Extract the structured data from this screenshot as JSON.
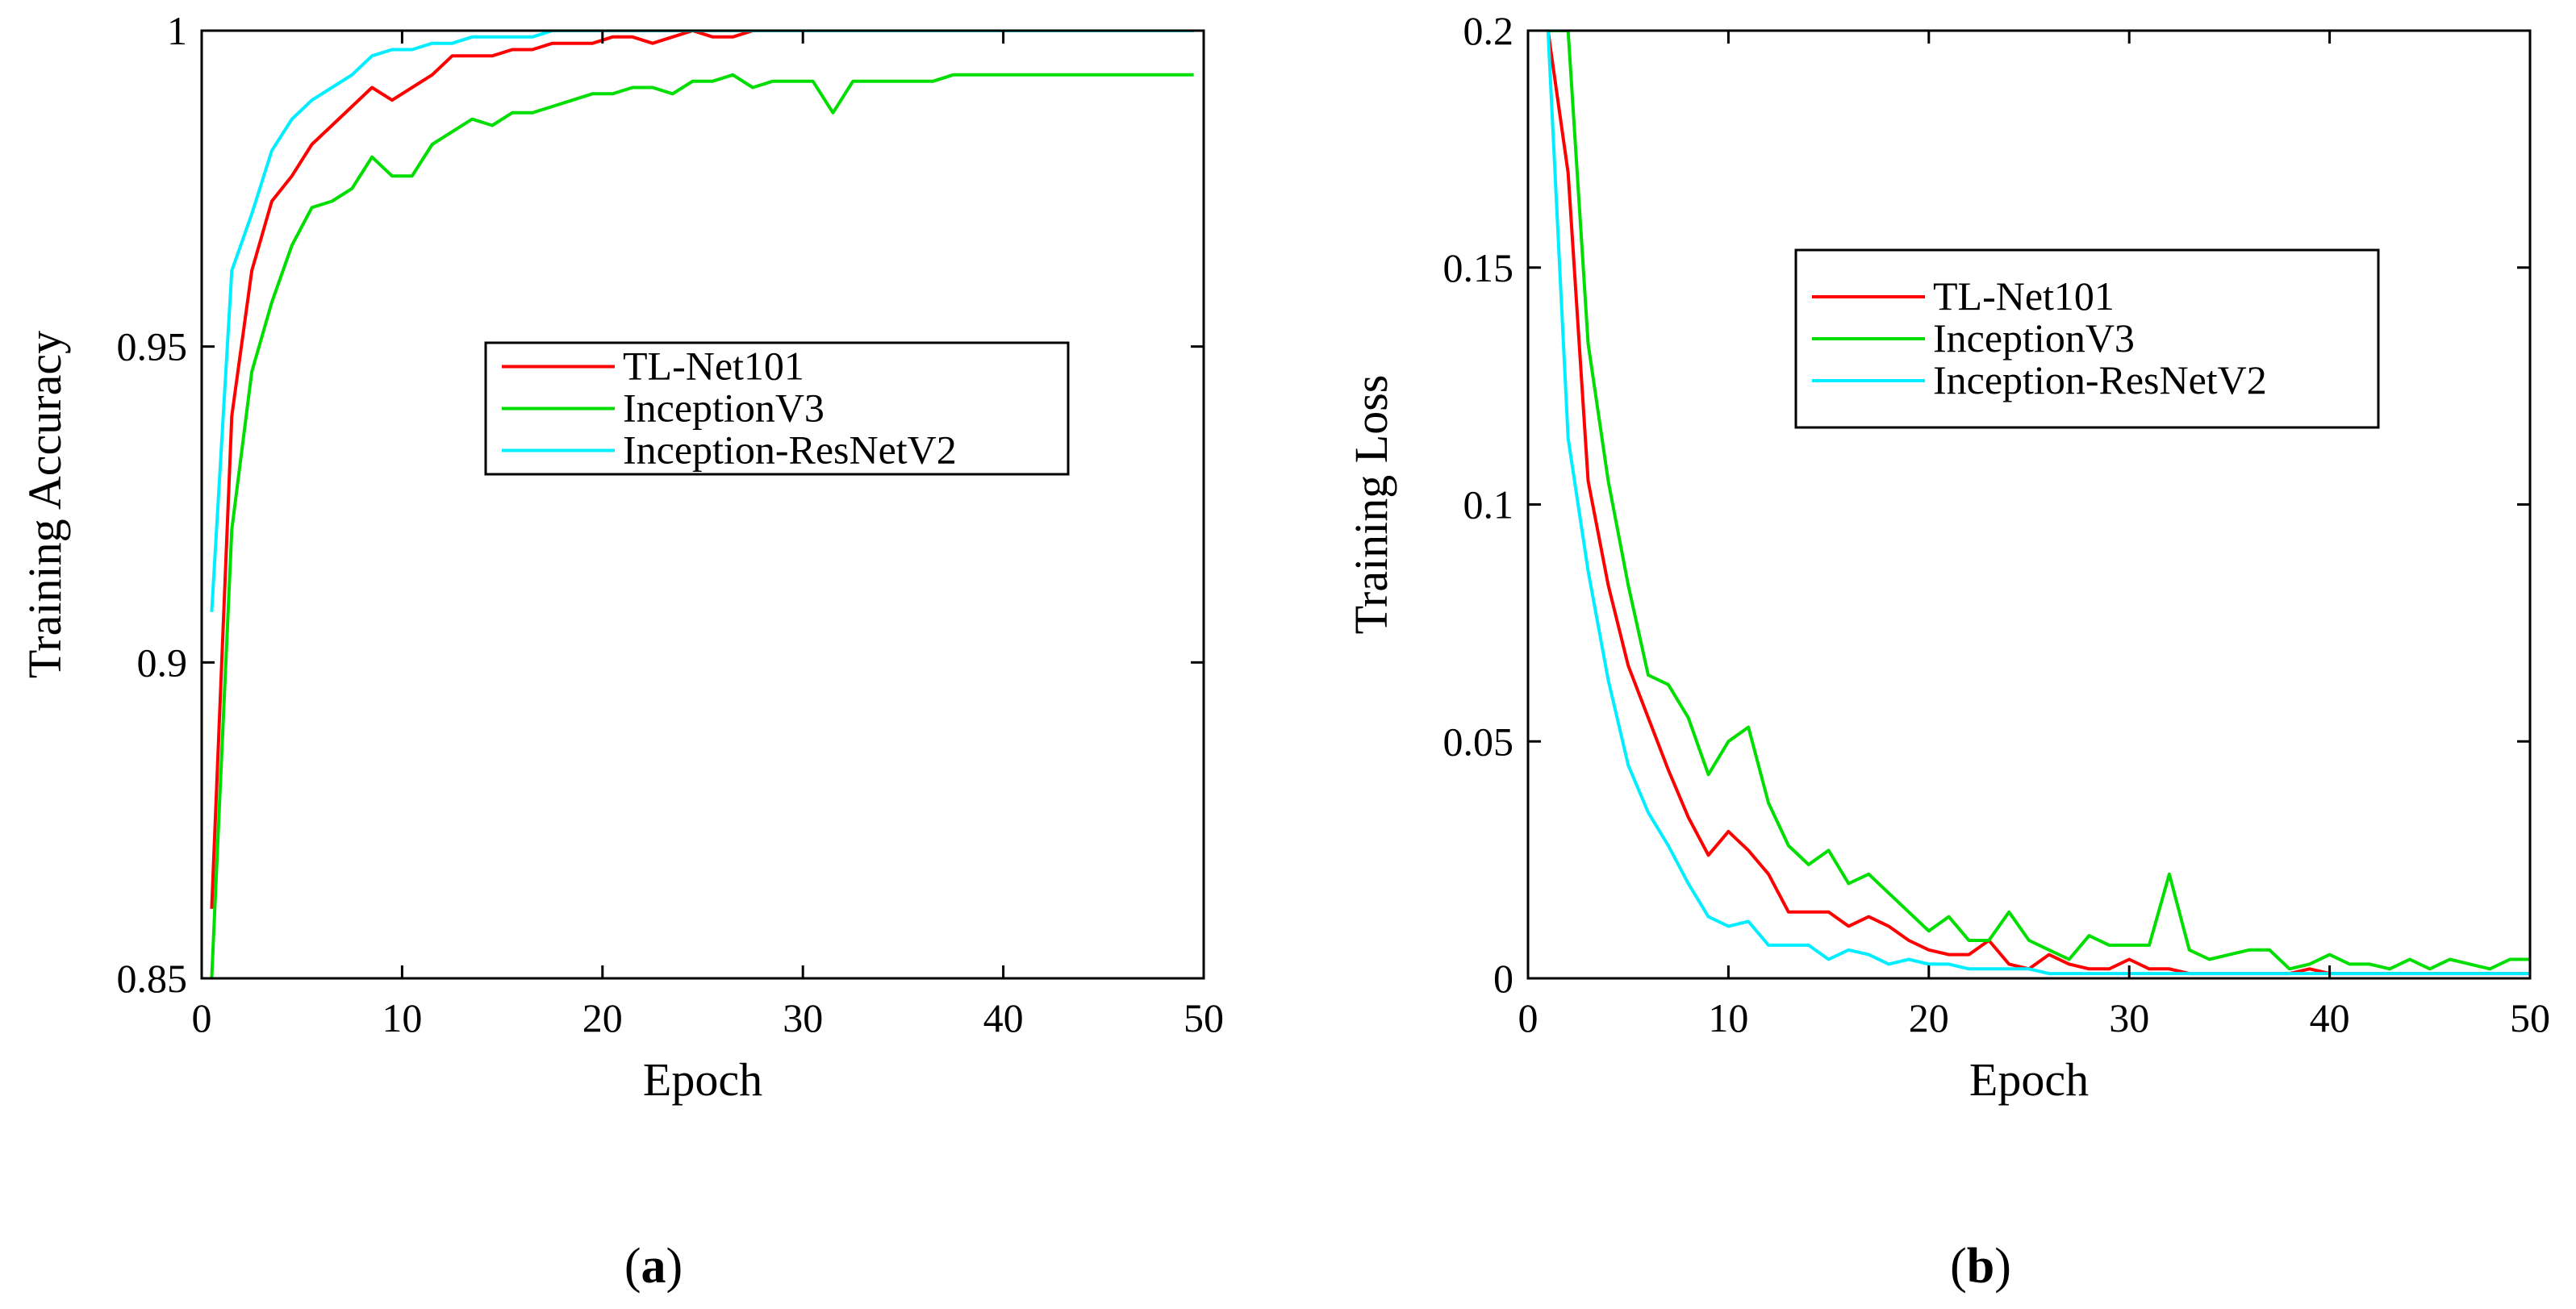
{
  "chart_data": [
    {
      "type": "line",
      "panel": "a",
      "xlabel": "Epoch",
      "ylabel": "Training Accuracy",
      "xlim": [
        0,
        50
      ],
      "ylim": [
        0.85,
        1.0
      ],
      "xticks": [
        0,
        10,
        20,
        30,
        40,
        50
      ],
      "xtick_labels": [
        "0",
        "10",
        "20",
        "30",
        "40",
        "50"
      ],
      "yticks": [
        0.85,
        0.9,
        0.95,
        1.0
      ],
      "ytick_labels": [
        "0.85",
        "0.9",
        "0.95",
        "1"
      ],
      "legend_position": "center-right",
      "series": [
        {
          "name": "TL-Net101",
          "color": "#ff0000",
          "x": [
            0.5,
            1.5,
            2.5,
            3.5,
            4.5,
            5.5,
            6.5,
            7.5,
            8.5,
            9.5,
            10.5,
            11.5,
            12.5,
            13.5,
            14.5,
            15.5,
            16.5,
            17.5,
            18.5,
            19.5,
            20.5,
            21.5,
            22.5,
            23.5,
            24.5,
            25.5,
            26.5,
            27.5,
            28.5,
            29.5,
            30.5,
            31.5,
            32.5,
            33.5,
            34.5,
            35.5,
            36.5,
            37.5,
            38.5,
            39.5,
            40.5,
            41.5,
            42.5,
            43.5,
            44.5,
            45.5,
            46.5,
            47.5,
            48.5,
            49.5
          ],
          "values": [
            0.861,
            0.939,
            0.962,
            0.973,
            0.977,
            0.982,
            0.985,
            0.988,
            0.991,
            0.989,
            0.991,
            0.993,
            0.996,
            0.996,
            0.996,
            0.997,
            0.997,
            0.998,
            0.998,
            0.998,
            0.999,
            0.999,
            0.998,
            0.999,
            1.0,
            0.999,
            0.999,
            1.0,
            1.0,
            1.0,
            1.0,
            1.0,
            1.0,
            1.0,
            1.0,
            1.0,
            1.0,
            1.0,
            1.0,
            1.0,
            1.0,
            1.0,
            1.0,
            1.0,
            1.0,
            1.0,
            1.0,
            1.0,
            1.0,
            1.0
          ]
        },
        {
          "name": "InceptionV3",
          "color": "#00dd00",
          "x": [
            0.5,
            1.5,
            2.5,
            3.5,
            4.5,
            5.5,
            6.5,
            7.5,
            8.5,
            9.5,
            10.5,
            11.5,
            12.5,
            13.5,
            14.5,
            15.5,
            16.5,
            17.5,
            18.5,
            19.5,
            20.5,
            21.5,
            22.5,
            23.5,
            24.5,
            25.5,
            26.5,
            27.5,
            28.5,
            29.5,
            30.5,
            31.5,
            32.5,
            33.5,
            34.5,
            35.5,
            36.5,
            37.5,
            38.5,
            39.5,
            40.5,
            41.5,
            42.5,
            43.5,
            44.5,
            45.5,
            46.5,
            47.5,
            48.5,
            49.5
          ],
          "values": [
            0.85,
            0.921,
            0.946,
            0.957,
            0.966,
            0.972,
            0.973,
            0.975,
            0.98,
            0.977,
            0.977,
            0.982,
            0.984,
            0.986,
            0.985,
            0.987,
            0.987,
            0.988,
            0.989,
            0.99,
            0.99,
            0.991,
            0.991,
            0.99,
            0.992,
            0.992,
            0.993,
            0.991,
            0.992,
            0.992,
            0.992,
            0.987,
            0.992,
            0.992,
            0.992,
            0.992,
            0.992,
            0.993,
            0.993,
            0.993,
            0.993,
            0.993,
            0.993,
            0.993,
            0.993,
            0.993,
            0.993,
            0.993,
            0.993,
            0.993
          ]
        },
        {
          "name": "Inception-ResNetV2",
          "color": "#00eeff",
          "x": [
            0.5,
            1.5,
            2.5,
            3.5,
            4.5,
            5.5,
            6.5,
            7.5,
            8.5,
            9.5,
            10.5,
            11.5,
            12.5,
            13.5,
            14.5,
            15.5,
            16.5,
            17.5,
            18.5,
            19.5,
            20.5,
            21.5,
            22.5,
            23.5,
            24.5,
            25.5,
            26.5,
            27.5,
            28.5,
            29.5,
            30.5,
            31.5,
            32.5,
            33.5,
            34.5,
            35.5,
            36.5,
            37.5,
            38.5,
            39.5,
            40.5,
            41.5,
            42.5,
            43.5,
            44.5,
            45.5,
            46.5,
            47.5,
            48.5,
            49.5
          ],
          "values": [
            0.908,
            0.962,
            0.971,
            0.981,
            0.986,
            0.989,
            0.991,
            0.993,
            0.996,
            0.997,
            0.997,
            0.998,
            0.998,
            0.999,
            0.999,
            0.999,
            0.999,
            1.0,
            1.0,
            1.0,
            1.0,
            1.0,
            1.0,
            1.0,
            1.0,
            1.0,
            1.0,
            1.0,
            1.0,
            1.0,
            1.0,
            1.0,
            1.0,
            1.0,
            1.0,
            1.0,
            1.0,
            1.0,
            1.0,
            1.0,
            1.0,
            1.0,
            1.0,
            1.0,
            1.0,
            1.0,
            1.0,
            1.0,
            1.0,
            1.0
          ]
        }
      ]
    },
    {
      "type": "line",
      "panel": "b",
      "xlabel": "Epoch",
      "ylabel": "Training Loss",
      "xlim": [
        0,
        50
      ],
      "ylim": [
        0,
        0.2
      ],
      "xticks": [
        0,
        10,
        20,
        30,
        40,
        50
      ],
      "xtick_labels": [
        "0",
        "10",
        "20",
        "30",
        "40",
        "50"
      ],
      "yticks": [
        0,
        0.05,
        0.1,
        0.15,
        0.2
      ],
      "ytick_labels": [
        "0",
        "0.05",
        "0.1",
        "0.15",
        "0.2"
      ],
      "legend_position": "upper-right",
      "series": [
        {
          "name": "TL-Net101",
          "color": "#ff0000",
          "x": [
            1,
            2,
            3,
            4,
            5,
            6,
            7,
            8,
            9,
            10,
            11,
            12,
            13,
            14,
            15,
            16,
            17,
            18,
            19,
            20,
            21,
            22,
            23,
            24,
            25,
            26,
            27,
            28,
            29,
            30,
            31,
            32,
            33,
            34,
            35,
            36,
            37,
            38,
            39,
            40,
            41,
            42,
            43,
            44,
            45,
            46,
            47,
            48,
            49,
            50
          ],
          "values": [
            0.2,
            0.17,
            0.105,
            0.083,
            0.066,
            0.055,
            0.044,
            0.034,
            0.026,
            0.031,
            0.027,
            0.022,
            0.014,
            0.014,
            0.014,
            0.011,
            0.013,
            0.011,
            0.008,
            0.006,
            0.005,
            0.005,
            0.008,
            0.003,
            0.002,
            0.005,
            0.003,
            0.002,
            0.002,
            0.004,
            0.002,
            0.002,
            0.001,
            0.001,
            0.001,
            0.001,
            0.001,
            0.001,
            0.002,
            0.001,
            0.001,
            0.001,
            0.001,
            0.001,
            0.001,
            0.001,
            0.001,
            0.001,
            0.001,
            0.001
          ]
        },
        {
          "name": "InceptionV3",
          "color": "#00dd00",
          "x": [
            1,
            2,
            3,
            4,
            5,
            6,
            7,
            8,
            9,
            10,
            11,
            12,
            13,
            14,
            15,
            16,
            17,
            18,
            19,
            20,
            21,
            22,
            23,
            24,
            25,
            26,
            27,
            28,
            29,
            30,
            31,
            32,
            33,
            34,
            35,
            36,
            37,
            38,
            39,
            40,
            41,
            42,
            43,
            44,
            45,
            46,
            47,
            48,
            49,
            50
          ],
          "values": [
            0.2,
            0.2,
            0.134,
            0.105,
            0.083,
            0.064,
            0.062,
            0.055,
            0.043,
            0.05,
            0.053,
            0.037,
            0.028,
            0.024,
            0.027,
            0.02,
            0.022,
            0.018,
            0.014,
            0.01,
            0.013,
            0.008,
            0.008,
            0.014,
            0.008,
            0.006,
            0.004,
            0.009,
            0.007,
            0.007,
            0.007,
            0.022,
            0.006,
            0.004,
            0.005,
            0.006,
            0.006,
            0.002,
            0.003,
            0.005,
            0.003,
            0.003,
            0.002,
            0.004,
            0.002,
            0.004,
            0.003,
            0.002,
            0.004,
            0.004
          ]
        },
        {
          "name": "Inception-ResNetV2",
          "color": "#00eeff",
          "x": [
            1,
            2,
            3,
            4,
            5,
            6,
            7,
            8,
            9,
            10,
            11,
            12,
            13,
            14,
            15,
            16,
            17,
            18,
            19,
            20,
            21,
            22,
            23,
            24,
            25,
            26,
            27,
            28,
            29,
            30,
            31,
            32,
            33,
            34,
            35,
            36,
            37,
            38,
            39,
            40,
            41,
            42,
            43,
            44,
            45,
            46,
            47,
            48,
            49,
            50
          ],
          "values": [
            0.2,
            0.114,
            0.086,
            0.063,
            0.045,
            0.035,
            0.028,
            0.02,
            0.013,
            0.011,
            0.012,
            0.007,
            0.007,
            0.007,
            0.004,
            0.006,
            0.005,
            0.003,
            0.004,
            0.003,
            0.003,
            0.002,
            0.002,
            0.002,
            0.002,
            0.001,
            0.001,
            0.001,
            0.001,
            0.001,
            0.001,
            0.001,
            0.001,
            0.001,
            0.001,
            0.001,
            0.001,
            0.001,
            0.001,
            0.001,
            0.001,
            0.001,
            0.001,
            0.001,
            0.001,
            0.001,
            0.001,
            0.001,
            0.001,
            0.001
          ]
        }
      ]
    }
  ],
  "panel_labels": [
    "(a)",
    "(b)"
  ],
  "panel_letters": [
    "a",
    "b"
  ]
}
